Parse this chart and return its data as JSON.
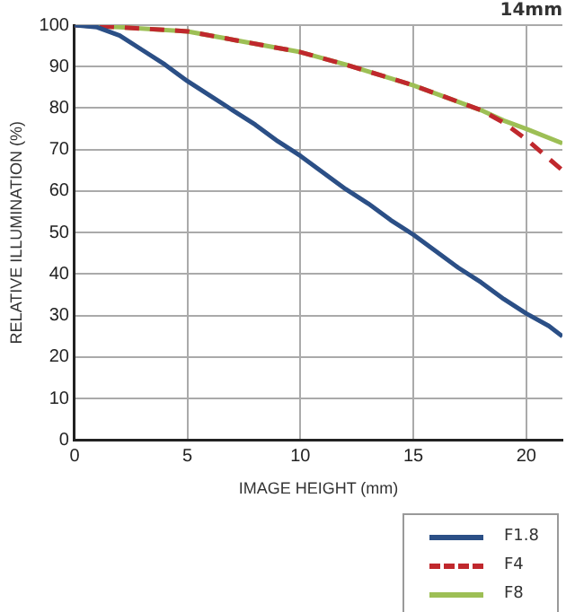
{
  "chart_data": {
    "type": "line",
    "title": "14mm",
    "xlabel": "IMAGE HEIGHT (mm)",
    "ylabel": "RELATIVE ILLUMINATION (%)",
    "xlim": [
      0,
      21.6
    ],
    "xticks": [
      0,
      5,
      10,
      15,
      20
    ],
    "ylim": [
      0,
      100
    ],
    "yticks": [
      0,
      10,
      20,
      30,
      40,
      50,
      60,
      70,
      80,
      90,
      100
    ],
    "grid": true,
    "legend": "bottom right",
    "marker": "none",
    "series": [
      {
        "name": "F1.8",
        "color": "#2b4f86",
        "line_style": "solid",
        "x": [
          0,
          1,
          2,
          3,
          4,
          5,
          6,
          7,
          8,
          9,
          10,
          11,
          12,
          13,
          14,
          15,
          16,
          17,
          18,
          19,
          20,
          21,
          21.6
        ],
        "values": [
          100,
          99.5,
          97.5,
          94,
          90.5,
          86.5,
          83,
          79.5,
          76,
          72,
          68.5,
          64.5,
          60.5,
          57,
          53,
          49.5,
          45.5,
          41.5,
          38,
          34,
          30.5,
          27.5,
          25
        ]
      },
      {
        "name": "F4",
        "color": "#c0282d",
        "line_style": "dashed",
        "x": [
          0,
          2,
          5,
          7,
          10,
          12,
          15,
          17,
          18,
          19,
          20,
          21.6
        ],
        "values": [
          100,
          99.5,
          98.5,
          96.5,
          93.5,
          90.5,
          85.5,
          81.5,
          79.5,
          76.5,
          72.5,
          65
        ]
      },
      {
        "name": "F8",
        "color": "#9dbf55",
        "line_style": "solid",
        "x": [
          0,
          2,
          5,
          7,
          10,
          12,
          15,
          17,
          18,
          19,
          20,
          21.6
        ],
        "values": [
          100,
          99.5,
          98.5,
          96.5,
          93.5,
          90.5,
          85.5,
          81.5,
          79.5,
          77,
          75,
          71.5
        ]
      }
    ]
  }
}
